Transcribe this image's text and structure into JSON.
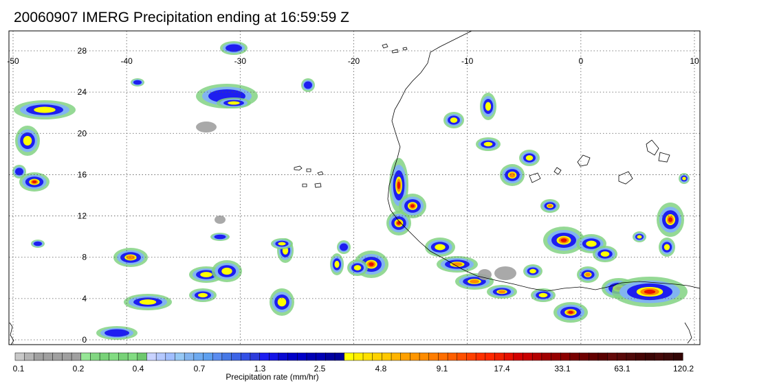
{
  "title": "20060907 IMERG Precipitation ending at 16:59:59 Z",
  "map": {
    "lon_range": [
      -50,
      10
    ],
    "lat_range": [
      -1,
      29
    ],
    "lon_ticks": [
      "-50",
      "-40",
      "-30",
      "-20",
      "-10",
      "0",
      "10"
    ],
    "lat_ticks": [
      "28",
      "24",
      "20",
      "16",
      "12",
      "8",
      "4",
      "0"
    ],
    "lon_tick_values": [
      -50,
      -40,
      -30,
      -20,
      -10,
      0,
      10
    ],
    "lat_tick_values": [
      28,
      24,
      20,
      16,
      12,
      8,
      4,
      0
    ],
    "gridlines": "dotted"
  },
  "colorbar": {
    "title": "Precipitation rate (mm/hr)",
    "labels": [
      "0.1",
      "0.2",
      "0.4",
      "0.7",
      "1.3",
      "2.5",
      "4.8",
      "9.1",
      "17.4",
      "33.1",
      "63.1",
      "120.2"
    ],
    "colors": [
      "#c8c8c8",
      "#b4b4b4",
      "#a0a0a0",
      "#a0a0a0",
      "#a0a0a0",
      "#a0a0a0",
      "#a0a0a0",
      "#96e696",
      "#82d782",
      "#78d278",
      "#82dc82",
      "#78d278",
      "#82dc82",
      "#6ec86e",
      "#c8d2ff",
      "#b4c8ff",
      "#a0beff",
      "#96c8f5",
      "#82b4f0",
      "#6eaaf0",
      "#5ea0f0",
      "#5a8cf0",
      "#4678e6",
      "#3c64e6",
      "#3250e6",
      "#2d3cdc",
      "#1e1ef0",
      "#1414e6",
      "#0a0ad2",
      "#0000c8",
      "#0000c8",
      "#0000b4",
      "#0000b4",
      "#0000a0",
      "#00009b",
      "#ffff00",
      "#ffee00",
      "#ffe000",
      "#ffd200",
      "#ffc800",
      "#ffb400",
      "#ffa000",
      "#ff9600",
      "#ff8c00",
      "#ff7d00",
      "#ff6e00",
      "#ff5f00",
      "#ff5000",
      "#ff4000",
      "#ff3000",
      "#ff2800",
      "#f02000",
      "#e60f00",
      "#d20000",
      "#c80000",
      "#b40000",
      "#a00000",
      "#960000",
      "#8c0000",
      "#780000",
      "#6e0000",
      "#640000",
      "#5a0000",
      "#640a0a",
      "#5a0a0a",
      "#500a0a",
      "#460505",
      "#3c0505",
      "#460a0a",
      "#3c0a0a",
      "#320505"
    ]
  },
  "legend_colors": {
    "gray": "#a0a0a0",
    "green": "#82d282",
    "light_blue": "#82b4f0",
    "blue": "#1e1ef0",
    "yellow": "#ffff00",
    "orange": "#ff8c00",
    "red": "#e61400",
    "dark_red": "#640000"
  }
}
